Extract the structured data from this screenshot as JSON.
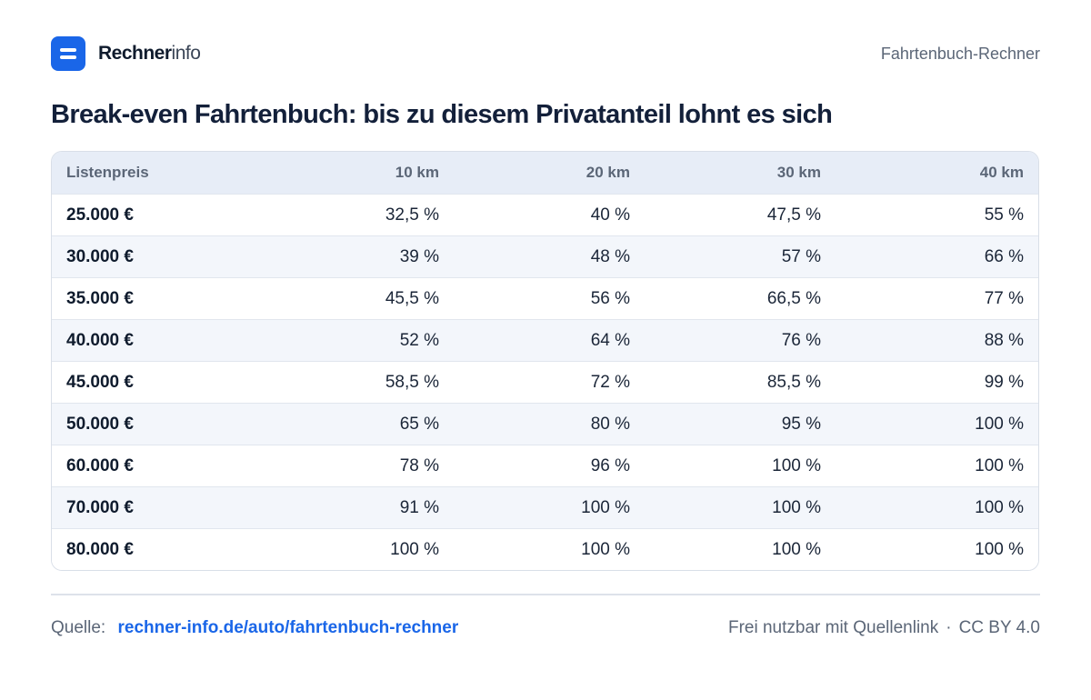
{
  "header": {
    "brand_strong": "Rechner",
    "brand_light": "info",
    "page_name": "Fahrtenbuch-Rechner"
  },
  "title": "Break-even Fahrtenbuch: bis zu diesem Privatanteil lohnt es sich",
  "table": {
    "columns": [
      "Listenpreis",
      "10 km",
      "20 km",
      "30 km",
      "40 km"
    ],
    "rows": [
      [
        "25.000 €",
        "32,5 %",
        "40 %",
        "47,5 %",
        "55 %"
      ],
      [
        "30.000 €",
        "39 %",
        "48 %",
        "57 %",
        "66 %"
      ],
      [
        "35.000 €",
        "45,5 %",
        "56 %",
        "66,5 %",
        "77 %"
      ],
      [
        "40.000 €",
        "52 %",
        "64 %",
        "76 %",
        "88 %"
      ],
      [
        "45.000 €",
        "58,5 %",
        "72 %",
        "85,5 %",
        "99 %"
      ],
      [
        "50.000 €",
        "65 %",
        "80 %",
        "95 %",
        "100 %"
      ],
      [
        "60.000 €",
        "78 %",
        "96 %",
        "100 %",
        "100 %"
      ],
      [
        "70.000 €",
        "91 %",
        "100 %",
        "100 %",
        "100 %"
      ],
      [
        "80.000 €",
        "100 %",
        "100 %",
        "100 %",
        "100 %"
      ]
    ]
  },
  "footer": {
    "source_label": "Quelle:",
    "source_link": "rechner-info.de/auto/fahrtenbuch-rechner",
    "license_text": "Frei nutzbar mit Quellenlink",
    "separator": "·",
    "license": "CC BY 4.0"
  },
  "colors": {
    "accent": "#1a66e8",
    "header_bg": "#e7edf7",
    "row_alt": "#f3f6fb"
  },
  "icons": {
    "logo": "logo-icon"
  }
}
